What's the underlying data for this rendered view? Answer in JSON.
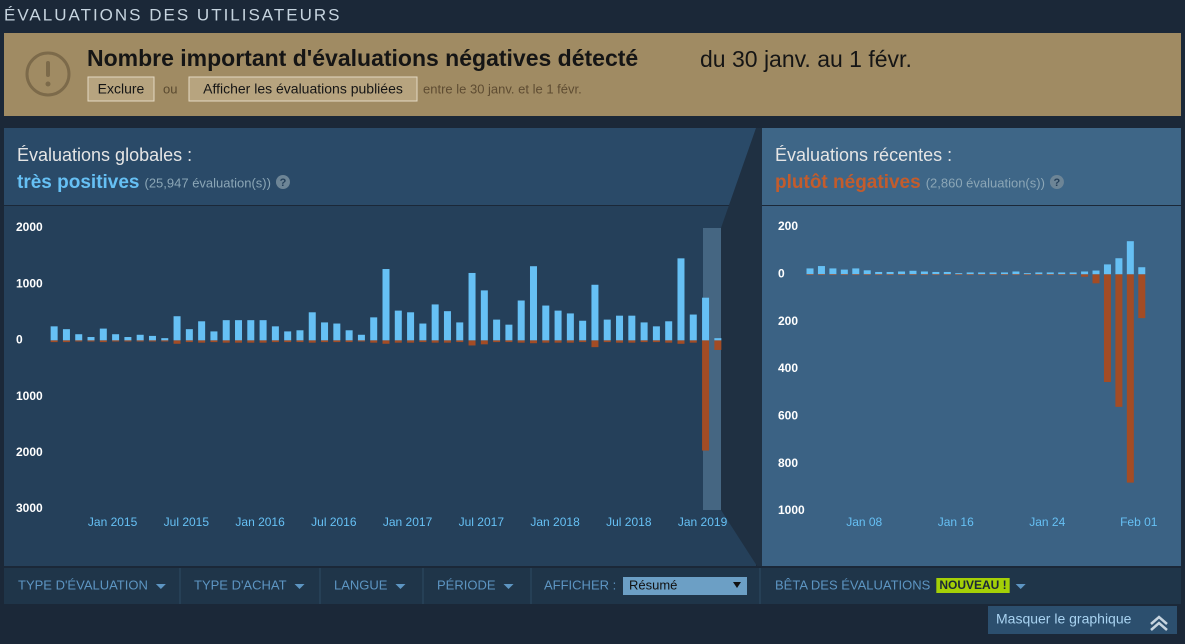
{
  "header": {
    "title": "ÉVALUATIONS DES UTILISATEURS"
  },
  "alert": {
    "title": "Nombre important d'évaluations négatives détecté",
    "date": "du 30 janv. au 1 févr.",
    "exclude": "Exclure",
    "or": "ou",
    "show": "Afficher les évaluations publiées",
    "note": "entre le 30 janv. et le 1 févr."
  },
  "chart_data": [
    {
      "type": "bar",
      "title": "Évaluations globales :",
      "rating": "très positives",
      "count": "(25,947 évaluation(s))",
      "help": "?",
      "categories": [
        null,
        null,
        null,
        null,
        null,
        "Jan 2015",
        null,
        null,
        null,
        null,
        null,
        "Jul 2015",
        null,
        null,
        null,
        null,
        null,
        "Jan 2016",
        null,
        null,
        null,
        null,
        null,
        "Jul 2016",
        null,
        null,
        null,
        null,
        null,
        "Jan 2017",
        null,
        null,
        null,
        null,
        null,
        "Jul 2017",
        null,
        null,
        null,
        null,
        null,
        "Jan 2018",
        null,
        null,
        null,
        null,
        null,
        "Jul 2018",
        null,
        null,
        null,
        null,
        null,
        "Jan 2019",
        null
      ],
      "series": [
        {
          "color": "#66c0f4",
          "values": [
            250,
            200,
            110,
            60,
            210,
            110,
            60,
            100,
            80,
            40,
            430,
            200,
            340,
            160,
            360,
            360,
            360,
            360,
            250,
            160,
            180,
            500,
            320,
            300,
            180,
            100,
            410,
            1270,
            530,
            500,
            300,
            640,
            520,
            320,
            1200,
            890,
            370,
            280,
            710,
            1320,
            620,
            530,
            480,
            350,
            990,
            370,
            440,
            440,
            320,
            250,
            340,
            1460,
            460,
            760,
            40
          ]
        },
        {
          "color": "#a34c25",
          "values": [
            -30,
            -30,
            -20,
            -20,
            -30,
            -20,
            -20,
            -20,
            -20,
            -20,
            -60,
            -30,
            -40,
            -30,
            -40,
            -40,
            -40,
            -40,
            -30,
            -30,
            -30,
            -40,
            -30,
            -30,
            -30,
            -20,
            -40,
            -60,
            -40,
            -40,
            -30,
            -40,
            -40,
            -30,
            -90,
            -70,
            -30,
            -30,
            -40,
            -50,
            -40,
            -40,
            -40,
            -30,
            -120,
            -30,
            -40,
            -40,
            -30,
            -30,
            -40,
            -60,
            -40,
            -1960,
            -170
          ]
        }
      ],
      "ylim": [
        -3000,
        2000
      ],
      "yticks": [
        2000,
        1000,
        0,
        {
          "value": -1000,
          "label": "1000"
        },
        {
          "value": -2000,
          "label": "2000"
        },
        {
          "value": -3000,
          "label": "3000"
        }
      ]
    },
    {
      "type": "bar",
      "title": "Évaluations récentes :",
      "rating": "plutôt négatives",
      "count": "(2,860 évaluation(s))",
      "help": "?",
      "categories": [
        null,
        null,
        null,
        null,
        null,
        "Jan 08",
        null,
        null,
        null,
        null,
        null,
        null,
        null,
        "Jan 16",
        null,
        null,
        null,
        null,
        null,
        null,
        null,
        "Jan 24",
        null,
        null,
        null,
        null,
        null,
        null,
        null,
        "Feb 01"
      ],
      "series": [
        {
          "color": "#66c0f4",
          "values": [
            25,
            35,
            25,
            20,
            25,
            17,
            10,
            10,
            12,
            15,
            12,
            10,
            10,
            5,
            8,
            8,
            8,
            8,
            12,
            5,
            8,
            8,
            8,
            8,
            12,
            16,
            42,
            68,
            140,
            30
          ]
        },
        {
          "color": "#a34c25",
          "values": [
            -3,
            -3,
            -3,
            -3,
            -3,
            -3,
            -3,
            -3,
            -3,
            -3,
            -3,
            -3,
            -3,
            -3,
            -3,
            -3,
            -3,
            -3,
            -3,
            -3,
            -3,
            -3,
            -3,
            -3,
            -10,
            -38,
            -455,
            -560,
            -880,
            -185
          ]
        }
      ],
      "ylim": [
        -1000,
        200
      ],
      "yticks": [
        200,
        0,
        {
          "value": -200,
          "label": "200"
        },
        {
          "value": -400,
          "label": "400"
        },
        {
          "value": -600,
          "label": "600"
        },
        {
          "value": -800,
          "label": "800"
        },
        {
          "value": -1000,
          "label": "1000"
        }
      ]
    }
  ],
  "filters": {
    "type": "TYPE D'ÉVALUATION",
    "purchase": "TYPE D'ACHAT",
    "language": "LANGUE",
    "period": "PÉRIODE",
    "display": "AFFICHER :",
    "display_value": "Résumé",
    "beta": "BÊTA DES ÉVALUATIONS",
    "new": "NOUVEAU !"
  },
  "hide_button": "Masquer le graphique"
}
